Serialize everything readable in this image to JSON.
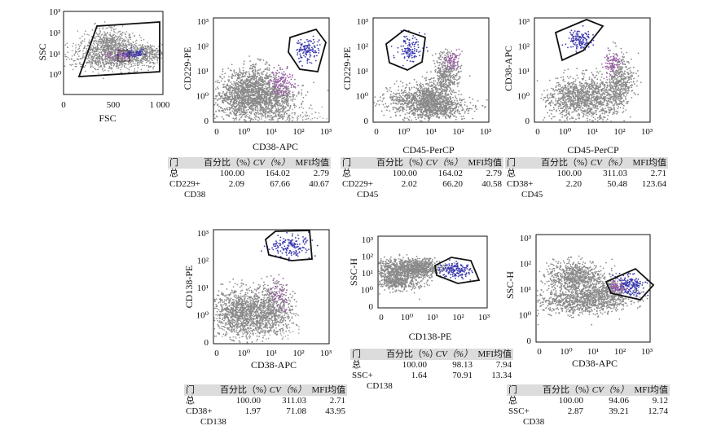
{
  "colors": {
    "cloud": "#8a8a8a",
    "gated": "#3a3ab0",
    "accent": "#9a5aa8",
    "gate_line": "#111111"
  },
  "stat_headers": {
    "gate": "门",
    "pct": "百分比（%）",
    "cv": "CV（%）",
    "mfi": "MFI均值"
  },
  "chart_data": [
    {
      "type": "scatter",
      "id": "p0",
      "xlabel": "FSC",
      "ylabel": "SSC",
      "xscale": "linear",
      "yscale": "log",
      "x_ticks": [
        "0",
        "500",
        "1 000"
      ],
      "y_ticks": [
        "10⁰",
        "10¹",
        "10²",
        "10³"
      ]
    },
    {
      "type": "scatter",
      "id": "p1",
      "xlabel": "CD38-APC",
      "ylabel": "CD229-PE",
      "xscale": "log",
      "yscale": "log",
      "x_ticks": [
        "0",
        "10⁰",
        "10¹",
        "10²",
        "10³"
      ],
      "y_ticks": [
        "0",
        "10⁰",
        "10¹",
        "10²",
        "10³"
      ],
      "stats": [
        {
          "gate": "总",
          "pct": "100.00",
          "cv": "164.02",
          "mfi": "2.79"
        },
        {
          "gate": "CD229+",
          "gate2": "CD38",
          "pct": "2.09",
          "cv": "67.66",
          "mfi": "40.67"
        }
      ]
    },
    {
      "type": "scatter",
      "id": "p2",
      "xlabel": "CD45-PerCP",
      "ylabel": "CD229-PE",
      "xscale": "log",
      "yscale": "log",
      "x_ticks": [
        "0",
        "10⁰",
        "10¹",
        "10²",
        "10³"
      ],
      "y_ticks": [
        "0",
        "10⁰",
        "10¹",
        "10²",
        "10³"
      ],
      "stats": [
        {
          "gate": "总",
          "pct": "100.00",
          "cv": "164.02",
          "mfi": "2.79"
        },
        {
          "gate": "CD229+",
          "gate2": "CD45",
          "pct": "2.02",
          "cv": "66.20",
          "mfi": "40.58"
        }
      ]
    },
    {
      "type": "scatter",
      "id": "p3",
      "xlabel": "CD45-PerCP",
      "ylabel": "CD38-APC",
      "xscale": "log",
      "yscale": "log",
      "x_ticks": [
        "0",
        "10⁰",
        "10¹",
        "10²",
        "10³"
      ],
      "y_ticks": [
        "0",
        "10⁰",
        "10¹",
        "10²",
        "10³"
      ],
      "stats": [
        {
          "gate": "总",
          "pct": "100.00",
          "cv": "311.03",
          "mfi": "2.71"
        },
        {
          "gate": "CD38+",
          "gate2": "CD45",
          "pct": "2.20",
          "cv": "50.48",
          "mfi": "123.64"
        }
      ]
    },
    {
      "type": "scatter",
      "id": "p4",
      "xlabel": "CD38-APC",
      "ylabel": "CD138-PE",
      "xscale": "log",
      "yscale": "log",
      "x_ticks": [
        "0",
        "10⁰",
        "10¹",
        "10²",
        "10³"
      ],
      "y_ticks": [
        "0",
        "10⁰",
        "10¹",
        "10²",
        "10³"
      ],
      "stats": [
        {
          "gate": "总",
          "pct": "100.00",
          "cv": "311.03",
          "mfi": "2.71"
        },
        {
          "gate": "CD38+",
          "gate2": "CD138",
          "pct": "1.97",
          "cv": "71.08",
          "mfi": "43.95"
        }
      ]
    },
    {
      "type": "scatter",
      "id": "p5",
      "xlabel": "CD138-PE",
      "ylabel": "SSC-H",
      "xscale": "log",
      "yscale": "log",
      "x_ticks": [
        "0",
        "10⁰",
        "10¹",
        "10²",
        "10³"
      ],
      "y_ticks": [
        "0",
        "10⁰",
        "10¹",
        "10²",
        "10³"
      ],
      "stats": [
        {
          "gate": "总",
          "pct": "100.00",
          "cv": "98.13",
          "mfi": "7.94"
        },
        {
          "gate": "SSC+",
          "gate2": "CD138",
          "pct": "1.64",
          "cv": "70.91",
          "mfi": "13.34"
        }
      ]
    },
    {
      "type": "scatter",
      "id": "p6",
      "xlabel": "CD38-APC",
      "ylabel": "SSC-H",
      "xscale": "log",
      "yscale": "log",
      "x_ticks": [
        "0",
        "10⁰",
        "10¹",
        "10²",
        "10³"
      ],
      "y_ticks": [
        "0",
        "10⁰",
        "10¹",
        "10²",
        "10³"
      ],
      "stats": [
        {
          "gate": "总",
          "pct": "100.00",
          "cv": "94.06",
          "mfi": "9.12"
        },
        {
          "gate": "SSC+",
          "gate2": "CD38",
          "pct": "2.87",
          "cv": "39.21",
          "mfi": "12.74"
        }
      ]
    }
  ]
}
